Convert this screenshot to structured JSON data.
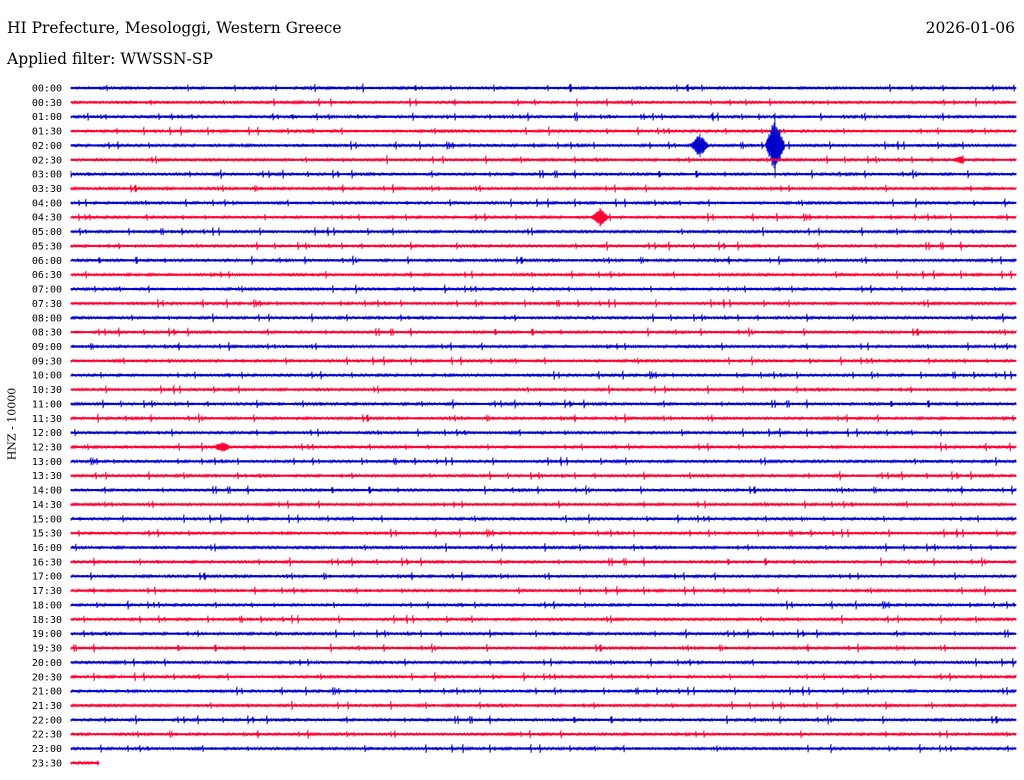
{
  "header": {
    "title": "HI Prefecture, Mesologgi, Western Greece",
    "date": "2026-01-06",
    "filter": "Applied filter: WWSSN-SP"
  },
  "chart_data": {
    "type": "line",
    "title": "HI Prefecture, Mesologgi, Western Greece",
    "subtitle": "Applied filter: WWSSN-SP",
    "ylabel": "HNZ - 10000",
    "xlabel": "",
    "grid": false,
    "colors": [
      "#0000cc",
      "#ff0033"
    ],
    "row_labels": [
      "00:00",
      "00:30",
      "01:00",
      "01:30",
      "02:00",
      "02:30",
      "03:00",
      "03:30",
      "04:00",
      "04:30",
      "05:00",
      "05:30",
      "06:00",
      "06:30",
      "07:00",
      "07:30",
      "08:00",
      "08:30",
      "09:00",
      "09:30",
      "10:00",
      "10:30",
      "11:00",
      "11:30",
      "12:00",
      "12:30",
      "13:00",
      "13:30",
      "14:00",
      "14:30",
      "15:00",
      "15:30",
      "16:00",
      "16:30",
      "17:00",
      "17:30",
      "18:00",
      "18:30",
      "19:00",
      "19:30",
      "20:00",
      "20:30",
      "21:00",
      "21:30",
      "22:00",
      "22:30",
      "23:00",
      "23:30"
    ],
    "notable_events": [
      {
        "row": "02:00",
        "at_fraction": 0.665,
        "amplitude": 13
      },
      {
        "row": "02:00",
        "at_fraction": 0.745,
        "amplitude": 33
      },
      {
        "row": "04:30",
        "at_fraction": 0.56,
        "amplitude": 10
      },
      {
        "row": "12:30",
        "at_fraction": 0.16,
        "amplitude": 6
      },
      {
        "row": "02:30",
        "at_fraction": 0.94,
        "amplitude": 4
      }
    ],
    "last_row_fraction": 0.03
  }
}
